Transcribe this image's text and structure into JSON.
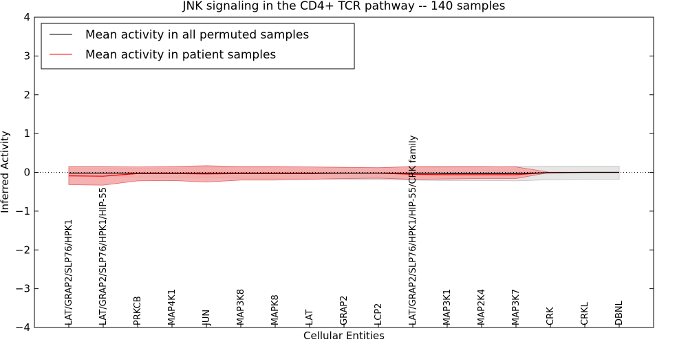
{
  "chart_data": {
    "type": "line",
    "title": "JNK signaling in the CD4+ TCR pathway -- 140 samples",
    "xlabel": "Cellular Entities",
    "ylabel": "Inferred Activity",
    "ylim": [
      -4,
      4
    ],
    "yticks": [
      -4,
      -3,
      -2,
      -1,
      0,
      1,
      2,
      3,
      4
    ],
    "ytick_labels": [
      "−4",
      "−3",
      "−2",
      "−1",
      "0",
      "1",
      "2",
      "3",
      "4"
    ],
    "grid": false,
    "legend_position": "top-left",
    "categories": [
      "LAT/GRAP2/SLP76/HPK1",
      "LAT/GRAP2/SLP76/HPK1/HIP-55",
      "PRKCB",
      "MAP4K1",
      "JUN",
      "MAP3K8",
      "MAPK8",
      "LAT",
      "GRAP2",
      "LCP2",
      "LAT/GRAP2/SLP76/HPK1/HIP-55/CRK family",
      "MAP3K1",
      "MAP2K4",
      "MAP3K7",
      "CRK",
      "CRKL",
      "DBNL"
    ],
    "series": [
      {
        "name": "Mean activity in all permuted samples",
        "color": "#000000",
        "values": [
          -0.02,
          -0.02,
          -0.02,
          -0.02,
          -0.02,
          -0.02,
          -0.02,
          -0.02,
          -0.02,
          -0.02,
          -0.02,
          -0.03,
          -0.03,
          -0.03,
          -0.01,
          0.0,
          0.0
        ],
        "band_low": [
          -0.1,
          -0.1,
          -0.12,
          -0.13,
          -0.14,
          -0.15,
          -0.16,
          -0.17,
          -0.18,
          -0.19,
          -0.2,
          -0.21,
          -0.21,
          -0.22,
          -0.19,
          -0.18,
          -0.18
        ],
        "band_high": [
          0.1,
          0.1,
          0.11,
          0.11,
          0.12,
          0.12,
          0.12,
          0.12,
          0.12,
          0.12,
          0.12,
          0.13,
          0.14,
          0.15,
          0.16,
          0.16,
          0.16
        ]
      },
      {
        "name": "Mean activity in patient samples",
        "color": "#ff0000",
        "values": [
          -0.09,
          -0.1,
          -0.03,
          -0.03,
          -0.04,
          -0.03,
          -0.03,
          -0.03,
          -0.02,
          -0.02,
          -0.05,
          -0.06,
          -0.06,
          -0.06,
          0.0,
          0.0,
          0.0
        ],
        "band_low": [
          -0.32,
          -0.33,
          -0.22,
          -0.21,
          -0.25,
          -0.2,
          -0.2,
          -0.18,
          -0.16,
          -0.15,
          -0.18,
          -0.17,
          -0.16,
          -0.16,
          0.0,
          0.0,
          0.0
        ],
        "band_high": [
          0.15,
          0.15,
          0.14,
          0.15,
          0.17,
          0.15,
          0.15,
          0.14,
          0.13,
          0.12,
          0.15,
          0.15,
          0.15,
          0.14,
          0.0,
          0.0,
          0.0
        ]
      }
    ]
  }
}
